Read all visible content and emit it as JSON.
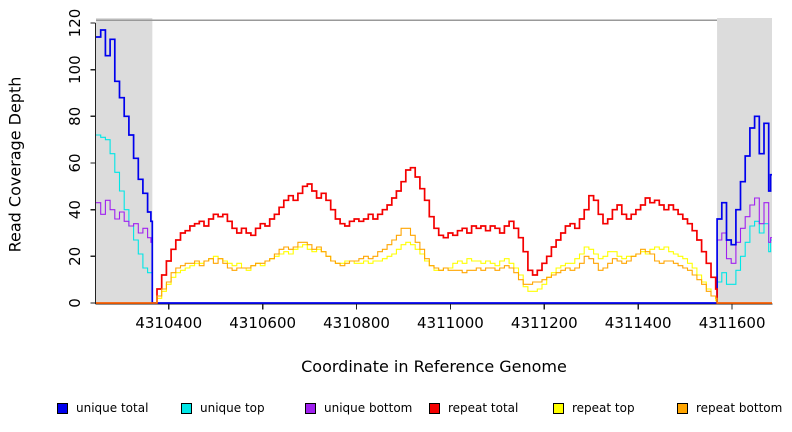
{
  "chart_data": {
    "type": "line",
    "title": "",
    "xlabel": "Coordinate in Reference Genome",
    "ylabel": "Read Coverage Depth",
    "xlim": [
      4310245,
      4311685
    ],
    "ylim": [
      0,
      120
    ],
    "x_ticks": [
      4310400,
      4310600,
      4310800,
      4311000,
      4311200,
      4311400,
      4311600
    ],
    "y_ticks": [
      0,
      20,
      40,
      60,
      80,
      100,
      120
    ],
    "layout": {
      "grid": false,
      "legend_position": "bottom",
      "z_order": [
        1,
        2,
        0,
        4,
        3,
        5
      ],
      "background": "#ffffff",
      "shade_color": "#dcdcdc",
      "border_color": "#999999",
      "axis_color": "#222222",
      "shaded_regions": [
        {
          "from": 4310245,
          "to": 4310365
        },
        {
          "from": 4311568,
          "to": 4311685
        }
      ]
    },
    "series": [
      {
        "name": "unique total",
        "color": "#0000ee",
        "width": 1.7,
        "segments": [
          {
            "x0": 4310245,
            "dx": 10,
            "v": [
              114,
              117,
              106,
              113,
              95,
              88,
              80,
              72,
              62,
              53,
              47,
              39
            ]
          },
          {
            "x0": 4310362,
            "dx": 10,
            "v": [
              35
            ]
          },
          {
            "x0": 4310365,
            "dx": 10,
            "v": [
              0
            ]
          },
          {
            "x0": 4311568,
            "dx": 10,
            "v": [
              36,
              43,
              27,
              25,
              40,
              52,
              63,
              75,
              80,
              64,
              77,
              48
            ]
          },
          {
            "x0": 4311682,
            "dx": 10,
            "v": [
              55
            ]
          }
        ]
      },
      {
        "name": "unique top",
        "color": "#00e6e6",
        "width": 1.1,
        "segments": [
          {
            "x0": 4310245,
            "dx": 10,
            "v": [
              72,
              71,
              70,
              64,
              56,
              48,
              40,
              33,
              27,
              21,
              15,
              13
            ]
          },
          {
            "x0": 4310362,
            "dx": 10,
            "v": [
              13
            ]
          },
          {
            "x0": 4310365,
            "dx": 10,
            "v": [
              0
            ]
          },
          {
            "x0": 4311568,
            "dx": 10,
            "v": [
              9,
              13,
              8,
              8,
              14,
              20,
              26,
              33,
              35,
              30,
              34,
              22
            ]
          },
          {
            "x0": 4311682,
            "dx": 10,
            "v": [
              27
            ]
          }
        ]
      },
      {
        "name": "unique bottom",
        "color": "#a020f0",
        "width": 1.1,
        "segments": [
          {
            "x0": 4310245,
            "dx": 10,
            "v": [
              43,
              38,
              44,
              40,
              36,
              39,
              35,
              33,
              34,
              30,
              32,
              28
            ]
          },
          {
            "x0": 4310362,
            "dx": 10,
            "v": [
              26
            ]
          },
          {
            "x0": 4310365,
            "dx": 10,
            "v": [
              0
            ]
          },
          {
            "x0": 4311568,
            "dx": 10,
            "v": [
              27,
              30,
              19,
              17,
              26,
              32,
              37,
              42,
              45,
              34,
              43,
              26
            ]
          },
          {
            "x0": 4311682,
            "dx": 10,
            "v": [
              28
            ]
          }
        ]
      },
      {
        "name": "repeat total",
        "color": "#f40000",
        "width": 1.7,
        "segments": [
          {
            "x0": 4310245,
            "dx": 10,
            "v": [
              0
            ]
          },
          {
            "x0": 4310375,
            "dx": 10,
            "v": [
              6,
              12,
              18,
              23,
              27,
              30,
              31,
              33,
              34,
              35,
              33,
              36,
              38,
              37,
              38,
              35,
              32,
              30,
              32,
              30,
              29,
              32,
              34,
              33,
              36,
              38,
              41,
              44,
              46,
              44,
              47,
              50,
              51,
              48,
              45,
              47,
              44,
              40,
              36,
              34,
              33,
              35,
              36,
              35,
              36,
              38,
              36,
              38,
              40,
              42,
              45,
              48,
              52,
              57,
              58,
              54,
              49,
              44,
              37,
              32,
              29,
              28,
              30,
              29,
              31,
              32,
              30,
              33,
              32,
              33,
              31,
              33,
              32,
              30,
              33,
              35,
              32,
              28,
              22,
              14,
              12,
              14,
              17,
              20,
              24,
              27,
              30,
              33,
              34,
              32,
              36,
              40,
              46,
              44,
              38,
              34,
              36,
              40,
              42,
              38,
              36,
              38,
              40,
              42,
              45,
              43,
              44,
              42,
              40,
              42,
              40,
              38,
              36,
              34,
              31,
              27,
              22,
              17,
              11,
              6
            ]
          },
          {
            "x0": 4311568,
            "dx": 10,
            "v": [
              0
            ]
          }
        ]
      },
      {
        "name": "repeat top",
        "color": "#ffff00",
        "width": 1.1,
        "segments": [
          {
            "x0": 4310245,
            "dx": 10,
            "v": [
              0
            ]
          },
          {
            "x0": 4310375,
            "dx": 10,
            "v": [
              2,
              5,
              8,
              11,
              13,
              14,
              15,
              16,
              17,
              17,
              18,
              19,
              20,
              19,
              18,
              17,
              16,
              17,
              15,
              14,
              16,
              17,
              16,
              18,
              19,
              20,
              21,
              22,
              21,
              23,
              24,
              25,
              23,
              22,
              23,
              22,
              20,
              18,
              17,
              17,
              18,
              18,
              17,
              17,
              18,
              17,
              18,
              18,
              19,
              20,
              21,
              23,
              25,
              26,
              25,
              23,
              21,
              18,
              16,
              14,
              14,
              15,
              15,
              17,
              18,
              17,
              19,
              18,
              18,
              17,
              18,
              17,
              16,
              18,
              19,
              17,
              15,
              12,
              7,
              5,
              5,
              6,
              8,
              11,
              13,
              15,
              16,
              17,
              17,
              19,
              21,
              24,
              23,
              21,
              19,
              20,
              22,
              22,
              20,
              19,
              20,
              20,
              21,
              22,
              21,
              23,
              24,
              23,
              24,
              22,
              21,
              20,
              19,
              17,
              15,
              12,
              9,
              6,
              3,
              1
            ]
          },
          {
            "x0": 4311568,
            "dx": 10,
            "v": [
              0
            ]
          }
        ]
      },
      {
        "name": "repeat bottom",
        "color": "#ffa500",
        "width": 1.1,
        "segments": [
          {
            "x0": 4310245,
            "dx": 10,
            "v": [
              0
            ]
          },
          {
            "x0": 4310375,
            "dx": 10,
            "v": [
              3,
              6,
              9,
              13,
              15,
              16,
              17,
              17,
              18,
              16,
              18,
              19,
              17,
              19,
              17,
              15,
              14,
              15,
              15,
              15,
              16,
              17,
              17,
              18,
              19,
              21,
              23,
              24,
              23,
              24,
              26,
              26,
              25,
              23,
              24,
              22,
              20,
              18,
              17,
              16,
              17,
              18,
              18,
              19,
              20,
              19,
              20,
              22,
              23,
              25,
              27,
              29,
              32,
              32,
              29,
              26,
              23,
              19,
              16,
              15,
              14,
              15,
              14,
              14,
              14,
              13,
              14,
              14,
              15,
              14,
              15,
              15,
              14,
              15,
              16,
              15,
              13,
              10,
              8,
              8,
              9,
              9,
              10,
              11,
              12,
              13,
              14,
              15,
              14,
              15,
              17,
              20,
              19,
              17,
              14,
              15,
              17,
              19,
              18,
              17,
              18,
              20,
              21,
              23,
              22,
              21,
              18,
              17,
              18,
              18,
              17,
              16,
              15,
              14,
              12,
              10,
              8,
              5,
              3,
              2
            ]
          },
          {
            "x0": 4311568,
            "dx": 10,
            "v": [
              0
            ]
          }
        ]
      }
    ]
  }
}
